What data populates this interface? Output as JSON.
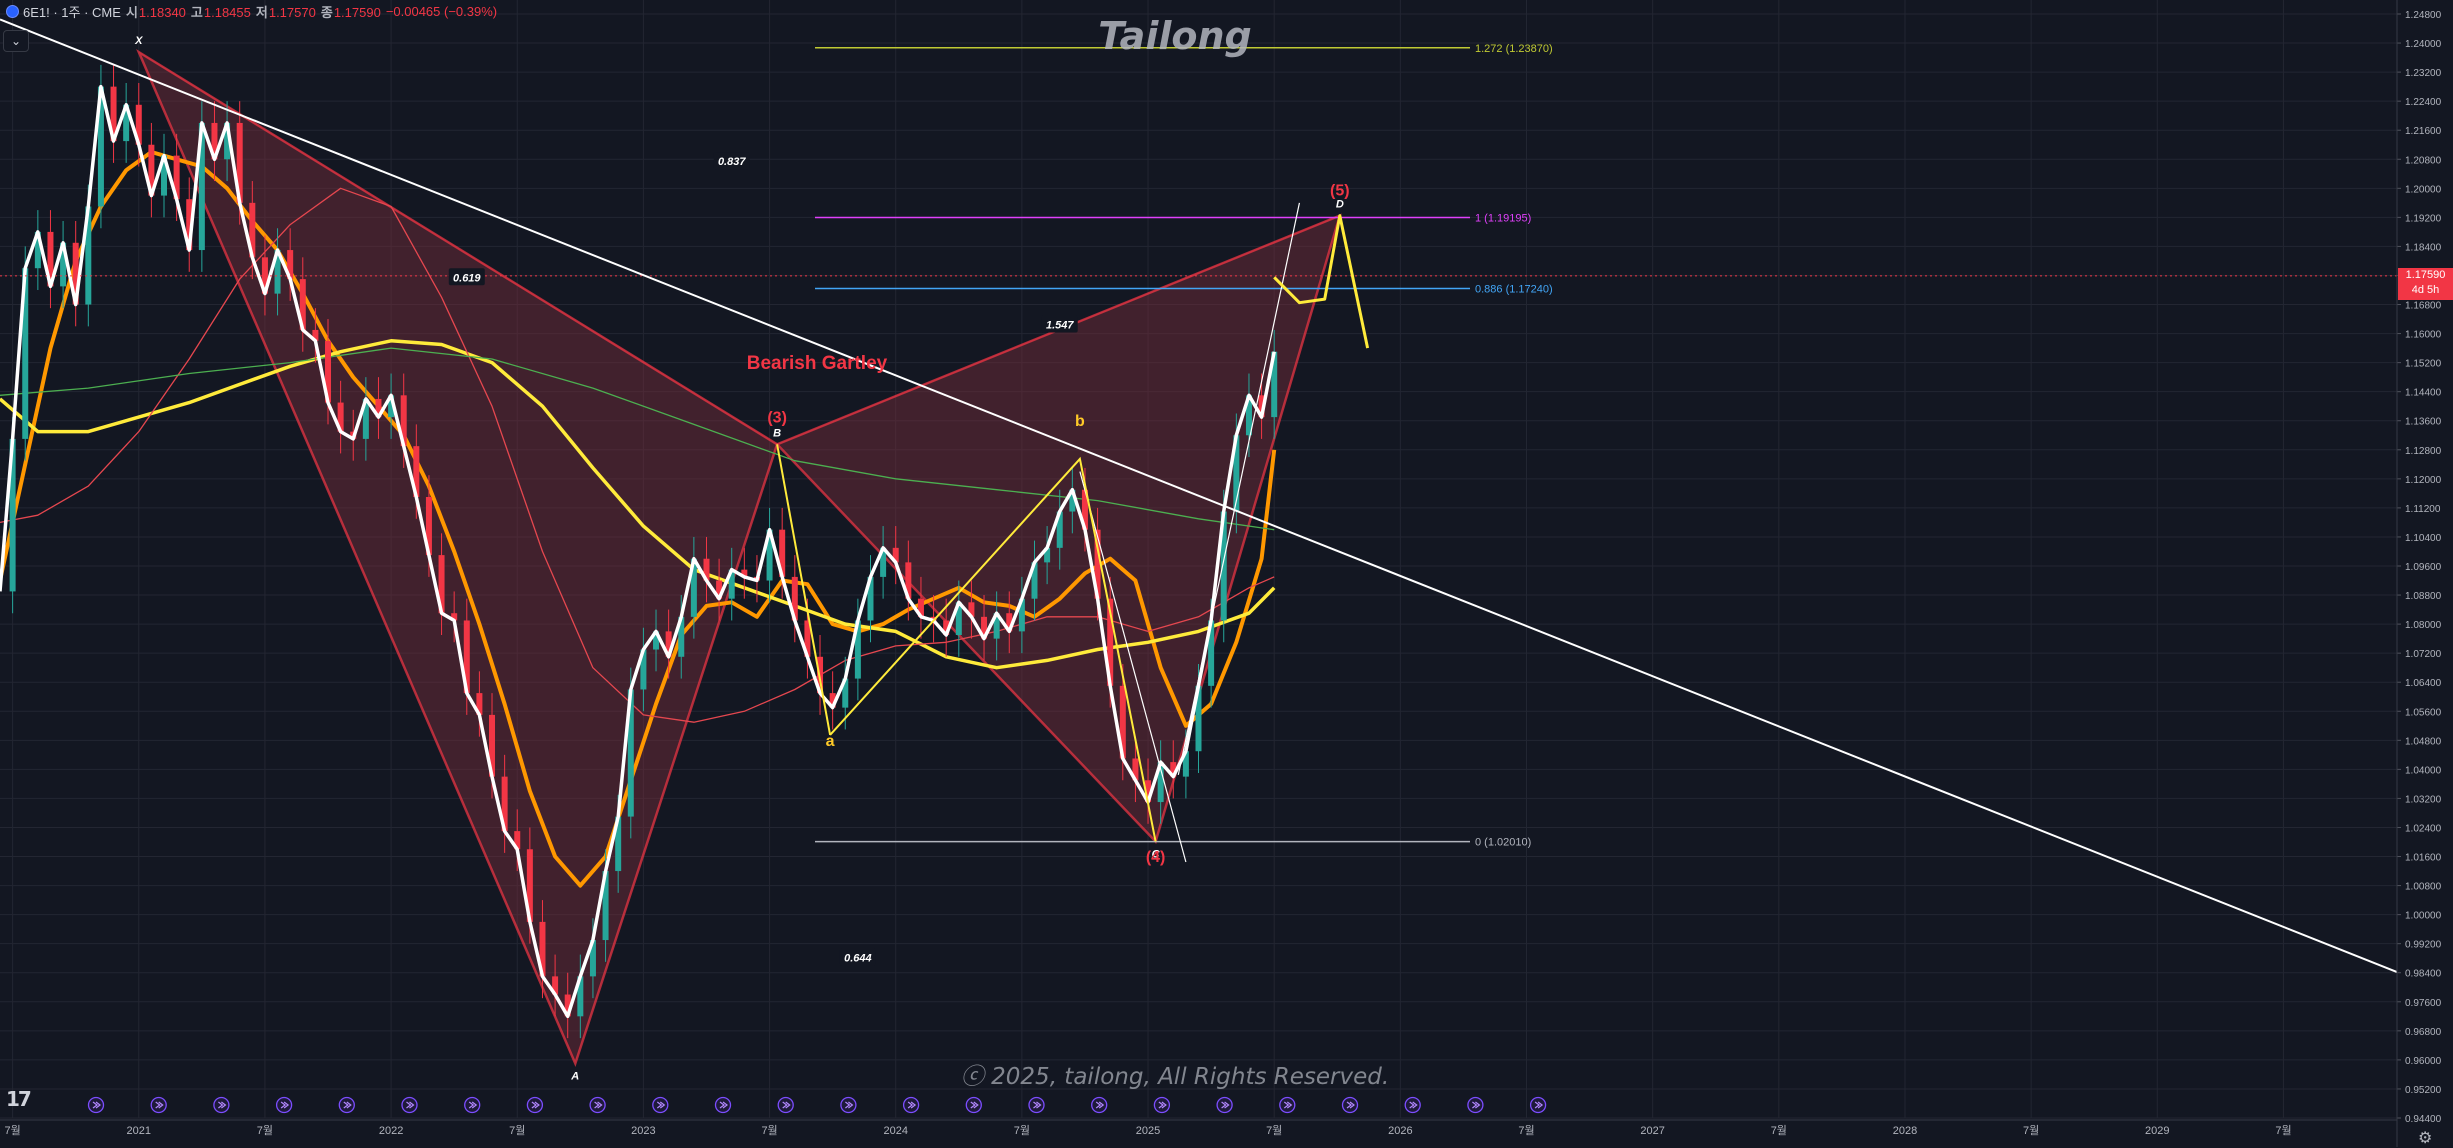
{
  "header": {
    "symbol": "6E1! · 1주 · CME",
    "open_label": "시",
    "open": "1.18340",
    "high_label": "고",
    "high": "1.18455",
    "low_label": "저",
    "low": "1.17570",
    "close_label": "종",
    "close": "1.17590",
    "change": "−0.00465 (−0.39%)"
  },
  "watermark": "Tailong",
  "copyright": "ⓒ 2025, tailong, All Rights Reserved.",
  "price_tag": {
    "price": "1.17590",
    "countdown": "4d 5h"
  },
  "colors": {
    "background": "#131722",
    "candle_up": "#26a69a",
    "candle_down": "#f23645",
    "pattern_fill": "#7a2f3c",
    "pattern_edge": "#f23645",
    "white_line": "#ffffff",
    "orange_ma": "#ff9800",
    "yellow_ma": "#ffeb3b",
    "red_ma": "#e5474f",
    "green_ma": "#4caf50",
    "fib_1272": "#c0ca33",
    "fib_1": "#e040fb",
    "fib_0886": "#42a5f5",
    "fib_0": "#b2b5be"
  },
  "chart_data": {
    "type": "line",
    "title": "",
    "ylim": [
      0.944,
      1.248
    ],
    "y_ticks": [
      "1.24800",
      "1.24000",
      "1.23200",
      "1.22400",
      "1.21600",
      "1.20800",
      "1.20000",
      "1.19200",
      "1.18400",
      "1.17600",
      "1.16800",
      "1.16000",
      "1.15200",
      "1.14400",
      "1.13600",
      "1.12800",
      "1.12000",
      "1.11200",
      "1.10400",
      "1.09600",
      "1.08800",
      "1.08000",
      "1.07200",
      "1.06400",
      "1.05600",
      "1.04800",
      "1.04000",
      "1.03200",
      "1.02400",
      "1.01600",
      "1.00800",
      "1.00000",
      "0.99200",
      "0.98400",
      "0.97600",
      "0.96800",
      "0.96000",
      "0.95200",
      "0.94400"
    ],
    "xlim": [
      2020.45,
      2029.95
    ],
    "x_ticks": [
      {
        "x": 2020.5,
        "label": "7월"
      },
      {
        "x": 2021.0,
        "label": "2021"
      },
      {
        "x": 2021.5,
        "label": "7월"
      },
      {
        "x": 2022.0,
        "label": "2022"
      },
      {
        "x": 2022.5,
        "label": "7월"
      },
      {
        "x": 2023.0,
        "label": "2023"
      },
      {
        "x": 2023.5,
        "label": "7월"
      },
      {
        "x": 2024.0,
        "label": "2024"
      },
      {
        "x": 2024.5,
        "label": "7월"
      },
      {
        "x": 2025.0,
        "label": "2025"
      },
      {
        "x": 2025.5,
        "label": "7월"
      },
      {
        "x": 2026.0,
        "label": "2026"
      },
      {
        "x": 2026.5,
        "label": "7월"
      },
      {
        "x": 2027.0,
        "label": "2027"
      },
      {
        "x": 2027.5,
        "label": "7월"
      },
      {
        "x": 2028.0,
        "label": "2028"
      },
      {
        "x": 2028.5,
        "label": "7월"
      },
      {
        "x": 2029.0,
        "label": "2029"
      },
      {
        "x": 2029.5,
        "label": "7월"
      }
    ],
    "pattern_title": "Bearish Gartley",
    "pattern_points": [
      {
        "name": "X",
        "x": 2021.0,
        "y": 1.2375
      },
      {
        "name": "A",
        "x": 2022.73,
        "y": 0.959
      },
      {
        "name": "B",
        "x": 2023.53,
        "y": 1.1295
      },
      {
        "name": "C",
        "x": 2025.03,
        "y": 1.0201
      },
      {
        "name": "D",
        "x": 2025.76,
        "y": 1.1925
      }
    ],
    "pattern_ratios": [
      {
        "label": "0.619",
        "x": 2022.3,
        "y": 1.1755
      },
      {
        "label": "0.837",
        "x": 2023.35,
        "y": 1.2075
      },
      {
        "label": "1.547",
        "x": 2024.65,
        "y": 1.1625
      },
      {
        "label": "0.644",
        "x": 2023.85,
        "y": 0.9882
      }
    ],
    "wave_labels": [
      {
        "label": "(3)",
        "x": 2023.53,
        "y": 1.1355,
        "kind": "red"
      },
      {
        "label": "(4)",
        "x": 2025.03,
        "y": 1.0145,
        "kind": "red"
      },
      {
        "label": "(5)",
        "x": 2025.76,
        "y": 1.198,
        "kind": "red"
      },
      {
        "label": "a",
        "x": 2023.74,
        "y": 1.0465,
        "kind": "yellow"
      },
      {
        "label": "b",
        "x": 2024.73,
        "y": 1.1345,
        "kind": "yellow"
      }
    ],
    "abc_path": [
      [
        2023.74,
        1.0495
      ],
      [
        2024.73,
        1.1255
      ],
      [
        2025.03,
        1.0201
      ]
    ],
    "fib_levels": [
      {
        "ratio": "1.272",
        "price": 1.2387,
        "label": "1.272 (1.23870)"
      },
      {
        "ratio": "1",
        "price": 1.19195,
        "label": "1 (1.19195)"
      },
      {
        "ratio": "0.886",
        "price": 1.1724,
        "label": "0.886 (1.17240)"
      },
      {
        "ratio": "0",
        "price": 1.0201,
        "label": "0 (1.02010)"
      }
    ],
    "fib_x_range": [
      2023.53,
      2026.0
    ],
    "trendline": [
      [
        2020.45,
        1.2465
      ],
      [
        2029.95,
        0.9842
      ]
    ],
    "projection": [
      [
        2025.5,
        1.1755
      ],
      [
        2025.6,
        1.1685
      ],
      [
        2025.7,
        1.1695
      ],
      [
        2025.76,
        1.1925
      ],
      [
        2025.87,
        1.156
      ]
    ],
    "current_price_line": 1.1759,
    "series": [
      {
        "name": "",
        "kind": "candles_close",
        "color": "white_line",
        "x": [
          2020.45,
          2020.5,
          2020.55,
          2020.6,
          2020.65,
          2020.7,
          2020.75,
          2020.8,
          2020.85,
          2020.9,
          2020.95,
          2021.0,
          2021.05,
          2021.1,
          2021.15,
          2021.2,
          2021.25,
          2021.3,
          2021.35,
          2021.4,
          2021.45,
          2021.5,
          2021.55,
          2021.6,
          2021.65,
          2021.7,
          2021.75,
          2021.8,
          2021.85,
          2021.9,
          2021.95,
          2022.0,
          2022.05,
          2022.1,
          2022.15,
          2022.2,
          2022.25,
          2022.3,
          2022.35,
          2022.4,
          2022.45,
          2022.5,
          2022.55,
          2022.6,
          2022.65,
          2022.7,
          2022.75,
          2022.8,
          2022.85,
          2022.9,
          2022.95,
          2023.0,
          2023.05,
          2023.1,
          2023.15,
          2023.2,
          2023.25,
          2023.3,
          2023.35,
          2023.4,
          2023.45,
          2023.5,
          2023.55,
          2023.6,
          2023.65,
          2023.7,
          2023.75,
          2023.8,
          2023.85,
          2023.9,
          2023.95,
          2024.0,
          2024.05,
          2024.1,
          2024.15,
          2024.2,
          2024.25,
          2024.3,
          2024.35,
          2024.4,
          2024.45,
          2024.5,
          2024.55,
          2024.6,
          2024.65,
          2024.7,
          2024.75,
          2024.8,
          2024.85,
          2024.9,
          2024.95,
          2025.0,
          2025.05,
          2025.1,
          2025.15,
          2025.2,
          2025.25,
          2025.3,
          2025.35,
          2025.4,
          2025.45,
          2025.5
        ],
        "values": [
          1.089,
          1.131,
          1.178,
          1.188,
          1.173,
          1.185,
          1.168,
          1.195,
          1.228,
          1.213,
          1.223,
          1.212,
          1.198,
          1.209,
          1.197,
          1.183,
          1.218,
          1.208,
          1.218,
          1.196,
          1.181,
          1.171,
          1.183,
          1.175,
          1.161,
          1.158,
          1.141,
          1.133,
          1.131,
          1.142,
          1.137,
          1.143,
          1.129,
          1.115,
          1.099,
          1.083,
          1.081,
          1.061,
          1.055,
          1.038,
          1.023,
          1.018,
          0.998,
          0.983,
          0.978,
          0.972,
          0.983,
          0.993,
          1.012,
          1.027,
          1.062,
          1.073,
          1.078,
          1.071,
          1.082,
          1.098,
          1.092,
          1.087,
          1.095,
          1.093,
          1.092,
          1.106,
          1.093,
          1.081,
          1.071,
          1.061,
          1.057,
          1.065,
          1.081,
          1.093,
          1.101,
          1.097,
          1.087,
          1.082,
          1.081,
          1.077,
          1.086,
          1.082,
          1.076,
          1.083,
          1.078,
          1.087,
          1.097,
          1.101,
          1.111,
          1.117,
          1.106,
          1.087,
          1.063,
          1.043,
          1.037,
          1.031,
          1.042,
          1.038,
          1.045,
          1.063,
          1.081,
          1.111,
          1.132,
          1.143,
          1.137,
          1.155
        ]
      },
      {
        "name": "",
        "kind": "ma",
        "color": "orange_ma",
        "x": [
          2020.45,
          2020.55,
          2020.65,
          2020.75,
          2020.85,
          2020.95,
          2021.05,
          2021.15,
          2021.25,
          2021.35,
          2021.45,
          2021.55,
          2021.65,
          2021.75,
          2021.85,
          2021.95,
          2022.05,
          2022.15,
          2022.25,
          2022.35,
          2022.45,
          2022.55,
          2022.65,
          2022.75,
          2022.85,
          2022.95,
          2023.05,
          2023.15,
          2023.25,
          2023.35,
          2023.45,
          2023.55,
          2023.65,
          2023.75,
          2023.85,
          2023.95,
          2024.05,
          2024.15,
          2024.25,
          2024.35,
          2024.45,
          2024.55,
          2024.65,
          2024.75,
          2024.85,
          2024.95,
          2025.05,
          2025.15,
          2025.25,
          2025.35,
          2025.45,
          2025.5
        ],
        "values": [
          1.092,
          1.124,
          1.156,
          1.18,
          1.195,
          1.205,
          1.21,
          1.208,
          1.206,
          1.2,
          1.191,
          1.183,
          1.171,
          1.158,
          1.148,
          1.14,
          1.132,
          1.118,
          1.1,
          1.08,
          1.058,
          1.034,
          1.016,
          1.008,
          1.016,
          1.037,
          1.058,
          1.077,
          1.085,
          1.086,
          1.082,
          1.092,
          1.091,
          1.08,
          1.078,
          1.08,
          1.084,
          1.087,
          1.09,
          1.086,
          1.085,
          1.082,
          1.087,
          1.094,
          1.098,
          1.092,
          1.068,
          1.052,
          1.058,
          1.075,
          1.098,
          1.128
        ]
      },
      {
        "name": "",
        "kind": "ma",
        "color": "yellow_ma",
        "x": [
          2020.45,
          2020.6,
          2020.8,
          2021.0,
          2021.2,
          2021.4,
          2021.6,
          2021.8,
          2022.0,
          2022.2,
          2022.4,
          2022.6,
          2022.8,
          2023.0,
          2023.2,
          2023.4,
          2023.6,
          2023.8,
          2024.0,
          2024.2,
          2024.4,
          2024.6,
          2024.8,
          2025.0,
          2025.2,
          2025.4,
          2025.5
        ],
        "values": [
          1.142,
          1.133,
          1.133,
          1.137,
          1.141,
          1.146,
          1.151,
          1.155,
          1.158,
          1.157,
          1.152,
          1.14,
          1.123,
          1.107,
          1.095,
          1.09,
          1.085,
          1.08,
          1.078,
          1.071,
          1.068,
          1.07,
          1.073,
          1.075,
          1.078,
          1.083,
          1.09
        ]
      },
      {
        "name": "",
        "kind": "ma",
        "color": "red_ma",
        "x": [
          2020.45,
          2020.6,
          2020.8,
          2021.0,
          2021.2,
          2021.4,
          2021.6,
          2021.8,
          2022.0,
          2022.2,
          2022.4,
          2022.6,
          2022.8,
          2023.0,
          2023.2,
          2023.4,
          2023.6,
          2023.8,
          2024.0,
          2024.2,
          2024.4,
          2024.6,
          2024.8,
          2025.0,
          2025.2,
          2025.4,
          2025.5
        ],
        "values": [
          1.108,
          1.11,
          1.118,
          1.133,
          1.153,
          1.175,
          1.19,
          1.2,
          1.195,
          1.17,
          1.14,
          1.1,
          1.068,
          1.055,
          1.053,
          1.056,
          1.062,
          1.07,
          1.074,
          1.075,
          1.078,
          1.082,
          1.082,
          1.078,
          1.082,
          1.09,
          1.093
        ]
      },
      {
        "name": "",
        "kind": "ma",
        "color": "green_ma",
        "x": [
          2020.45,
          2020.8,
          2021.2,
          2021.6,
          2022.0,
          2022.4,
          2022.8,
          2023.2,
          2023.6,
          2024.0,
          2024.4,
          2024.8,
          2025.2,
          2025.5
        ],
        "values": [
          1.143,
          1.145,
          1.149,
          1.152,
          1.156,
          1.153,
          1.145,
          1.135,
          1.125,
          1.12,
          1.117,
          1.114,
          1.109,
          1.106
        ]
      }
    ]
  }
}
